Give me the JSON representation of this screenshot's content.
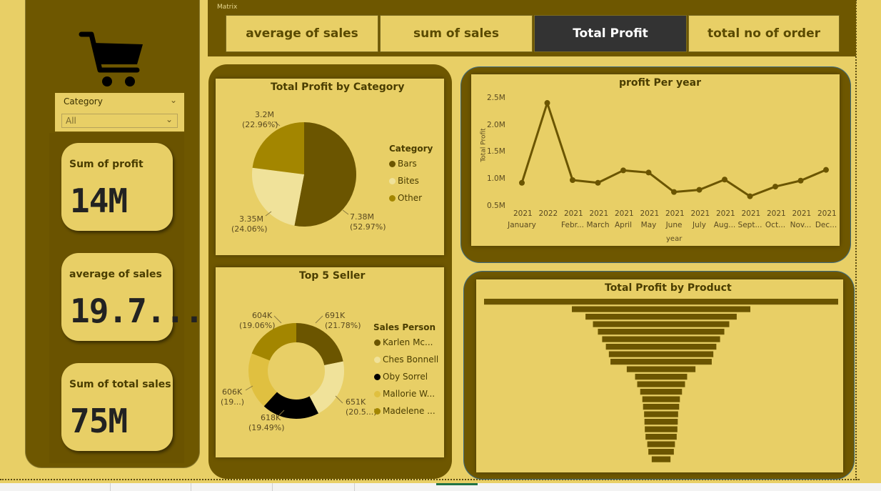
{
  "colors": {
    "background": "#E8CF66",
    "dark_panel": "#6E5700",
    "active_button": "#333333",
    "series_dark": "#6B5500",
    "series_gold": "#A38600",
    "series_light": "#F0E29A",
    "series_black": "#000000",
    "series_yellow": "#E0C040"
  },
  "sidebar": {
    "icon": "shopping-cart-icon",
    "slicer": {
      "label": "Category",
      "value": "All"
    },
    "kpis": [
      {
        "label": "Sum of profit",
        "value": "14M"
      },
      {
        "label": "average of sales",
        "value": "19.7..."
      },
      {
        "label": "Sum of total sales",
        "value": "75M"
      }
    ]
  },
  "matrix": {
    "label": "Matrix",
    "buttons": [
      {
        "label": "average of sales",
        "active": false
      },
      {
        "label": "sum of sales",
        "active": false
      },
      {
        "label": "Total Profit",
        "active": true
      },
      {
        "label": "total no of order",
        "active": false
      }
    ]
  },
  "chart_data": [
    {
      "type": "pie",
      "title": "Total Profit by Category",
      "legend_title": "Category",
      "legend": "right",
      "slices": [
        {
          "name": "Bars",
          "value": 7.38,
          "label": "7.38M",
          "percent": "(52.97%)",
          "color": "#6B5500"
        },
        {
          "name": "Bites",
          "value": 3.35,
          "label": "3.35M",
          "percent": "(24.06%)",
          "color": "#F0E29A"
        },
        {
          "name": "Other",
          "value": 3.2,
          "label": "3.2M",
          "percent": "(22.96%)",
          "color": "#A38600"
        }
      ]
    },
    {
      "type": "pie",
      "subtype": "donut",
      "title": "Top 5 Seller",
      "legend_title": "Sales Person",
      "legend": "right",
      "slices": [
        {
          "name": "Karlen Mc...",
          "value": 691,
          "label": "691K",
          "percent": "(21.78%)",
          "color": "#6B5500"
        },
        {
          "name": "Ches Bonnell",
          "value": 651,
          "label": "651K",
          "percent": "(20.5...)",
          "color": "#F0E29A"
        },
        {
          "name": "Oby Sorrel",
          "value": 618,
          "label": "618K",
          "percent": "(19.49%)",
          "color": "#000000"
        },
        {
          "name": "Mallorie W...",
          "value": 606,
          "label": "606K",
          "percent": "(19...)",
          "color": "#E0C040"
        },
        {
          "name": "Madelene ...",
          "value": 604,
          "label": "604K",
          "percent": "(19.06%)",
          "color": "#A38600"
        }
      ]
    },
    {
      "type": "line",
      "title": "profit Per year",
      "xlabel": "year",
      "ylabel": "Total Profit",
      "ylim": [
        0.5,
        2.5
      ],
      "yticks": [
        "0.5M",
        "1.0M",
        "1.5M",
        "2.0M",
        "2.5M"
      ],
      "grid": false,
      "categories": [
        {
          "year": "2021",
          "month": "January"
        },
        {
          "year": "2022",
          "month": ""
        },
        {
          "year": "2021",
          "month": "Febr..."
        },
        {
          "year": "2021",
          "month": "March"
        },
        {
          "year": "2021",
          "month": "April"
        },
        {
          "year": "2021",
          "month": "May"
        },
        {
          "year": "2021",
          "month": "June"
        },
        {
          "year": "2021",
          "month": "July"
        },
        {
          "year": "2021",
          "month": "Aug..."
        },
        {
          "year": "2021",
          "month": "Sept..."
        },
        {
          "year": "2021",
          "month": "Oct..."
        },
        {
          "year": "2021",
          "month": "Nov..."
        },
        {
          "year": "2021",
          "month": "Dec..."
        }
      ],
      "values": [
        0.94,
        2.42,
        0.99,
        0.94,
        1.17,
        1.13,
        0.77,
        0.81,
        1.0,
        0.69,
        0.87,
        0.98,
        1.18
      ]
    },
    {
      "type": "bar",
      "subtype": "funnel",
      "title": "Total Profit by Product",
      "values": [
        100,
        50.4,
        42.7,
        38.5,
        35.7,
        33.3,
        31.2,
        29.5,
        28.6,
        19.4,
        14.7,
        13.5,
        11.8,
        10.6,
        10.2,
        9.6,
        9.4,
        9.2,
        8.8,
        7.8,
        7.2,
        5.3
      ]
    }
  ]
}
